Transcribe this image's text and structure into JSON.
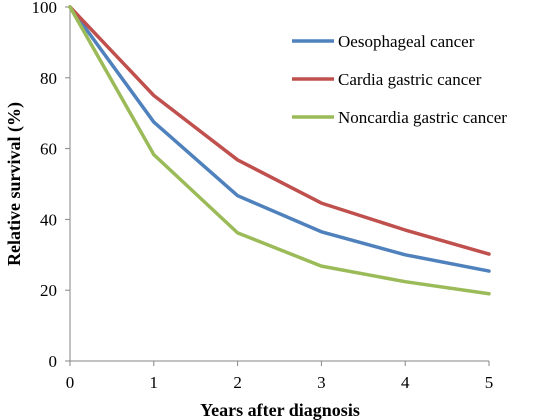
{
  "chart_data": {
    "type": "line",
    "title": "",
    "xlabel": "Years after diagnosis",
    "ylabel": "Relative survival (%)",
    "x": [
      0,
      1,
      2,
      3,
      4,
      5
    ],
    "xlim": [
      0,
      5
    ],
    "ylim": [
      0,
      100
    ],
    "yticks": [
      0,
      20,
      40,
      60,
      80,
      100
    ],
    "xticks": [
      0,
      1,
      2,
      3,
      4,
      5
    ],
    "grid": false,
    "legend_position": "top-right",
    "series": [
      {
        "name": "Oesophageal cancer",
        "color": "#4F81BD",
        "values": [
          100,
          67.5,
          46.7,
          36.5,
          30.0,
          25.4
        ]
      },
      {
        "name": "Cardia gastric cancer",
        "color": "#C0504D",
        "values": [
          100,
          75.0,
          56.8,
          44.6,
          37.0,
          30.2
        ]
      },
      {
        "name": "Noncardia gastric cancer",
        "color": "#9BBB59",
        "values": [
          100,
          58.3,
          36.2,
          26.8,
          22.4,
          19.0
        ]
      }
    ]
  }
}
